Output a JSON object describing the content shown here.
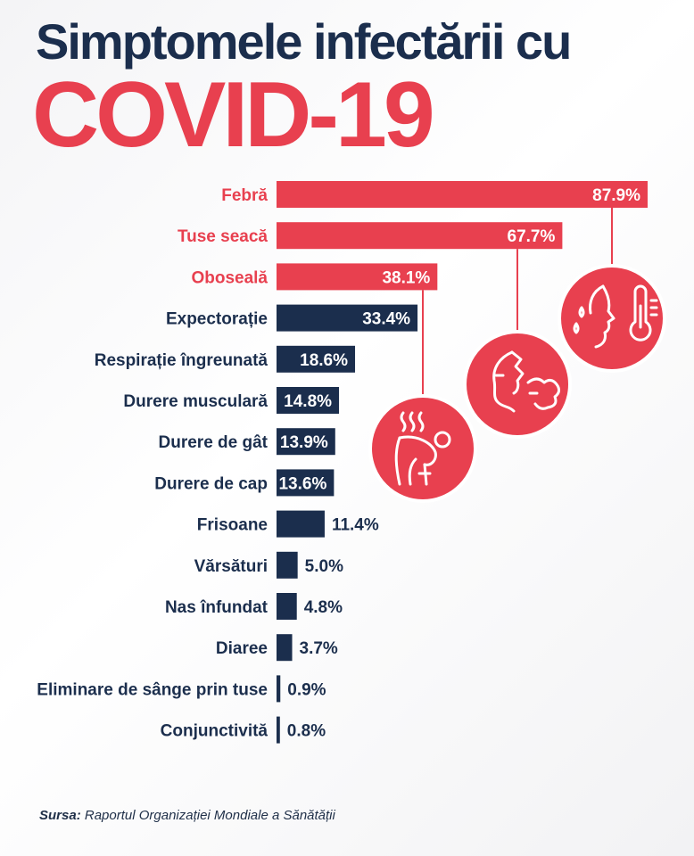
{
  "title_line1": "Simptomele infectării cu",
  "title_line2": "COVID-19",
  "source_label": "Sursa:",
  "source_text": " Raportul Organizației Mondiale a Sănătății",
  "colors": {
    "red": "#e8404f",
    "navy": "#1b2e4d",
    "white": "#ffffff"
  },
  "icons": [
    "fever-face-thermometer-icon",
    "cough-icon",
    "fatigue-icon"
  ],
  "chart_data": {
    "type": "bar",
    "orientation": "horizontal",
    "title": "Simptomele infectării cu COVID-19",
    "categories": [
      "Febră",
      "Tuse seacă",
      "Oboseală",
      "Expectorație",
      "Respirație îngreunată",
      "Durere musculară",
      "Durere de gât",
      "Durere de cap",
      "Frisoane",
      "Vărsături",
      "Nas înfundat",
      "Diaree",
      "Eliminare de sânge prin tuse",
      "Conjunctivită"
    ],
    "values": [
      87.9,
      67.7,
      38.1,
      33.4,
      18.6,
      14.8,
      13.9,
      13.6,
      11.4,
      5.0,
      4.8,
      3.7,
      0.9,
      0.8
    ],
    "value_labels": [
      "87.9%",
      "67.7%",
      "38.1%",
      "33.4%",
      "18.6%",
      "14.8%",
      "13.9%",
      "13.6%",
      "11.4%",
      "5.0%",
      "4.8%",
      "3.7%",
      "0.9%",
      "0.8%"
    ],
    "highlighted_count": 3,
    "unit": "%",
    "xlim": [
      0,
      87.9
    ],
    "grid": false,
    "legend": "none"
  }
}
